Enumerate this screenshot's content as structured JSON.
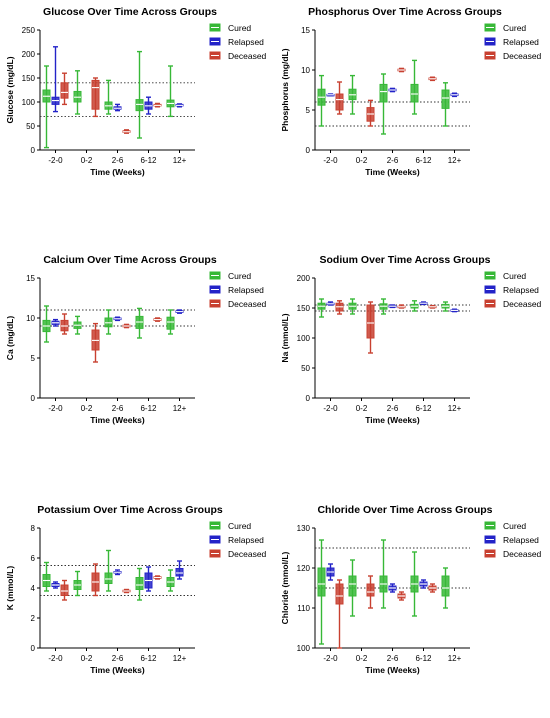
{
  "legend": [
    {
      "name": "Cured",
      "color": "#2ca02c"
    },
    {
      "name": "Relapsed",
      "color": "#1f1fd0"
    },
    {
      "name": "Deceased",
      "color": "#a0522d"
    }
  ],
  "box_colors": {
    "Cured": "#37b837",
    "Relapsed": "#2323c8",
    "Deceased": "#c84030"
  },
  "chart_data": [
    {
      "type": "box",
      "title": "Glucose Over Time Across Groups",
      "ylabel": "Glucose (mg/dL)",
      "xlabel": "Time (Weeks)",
      "ylim": [
        0,
        250
      ],
      "yticks": [
        0,
        50,
        100,
        150,
        200,
        250
      ],
      "categories": [
        "-2-0",
        "0-2",
        "2-6",
        "6-12",
        "12+"
      ],
      "ref_lines": [
        70,
        140
      ],
      "series": [
        {
          "name": "Cured",
          "boxes": [
            [
              5,
              100,
              112,
              125,
              175
            ],
            [
              75,
              100,
              110,
              122,
              165
            ],
            [
              75,
              85,
              92,
              100,
              145
            ],
            [
              25,
              82,
              95,
              105,
              205
            ],
            [
              70,
              90,
              97,
              104,
              175
            ]
          ]
        },
        {
          "name": "Relapsed",
          "boxes": [
            [
              80,
              95,
              103,
              110,
              215
            ],
            null,
            [
              82,
              85,
              87,
              90,
              95
            ],
            [
              75,
              85,
              92,
              100,
              110
            ],
            [
              90,
              92,
              93,
              95,
              96
            ]
          ]
        },
        {
          "name": "Deceased",
          "boxes": [
            [
              95,
              108,
              120,
              140,
              160
            ],
            [
              70,
              85,
              130,
              145,
              150
            ],
            [
              35,
              37,
              38,
              40,
              42
            ],
            [
              90,
              92,
              93,
              95,
              97
            ],
            null
          ]
        }
      ]
    },
    {
      "type": "box",
      "title": "Phosphorus Over Time Across Groups",
      "ylabel": "Phosphorus (mg/dL)",
      "xlabel": "Time (Weeks)",
      "ylim": [
        0,
        15
      ],
      "yticks": [
        0,
        5,
        10,
        15
      ],
      "categories": [
        "-2-0",
        "0-2",
        "2-6",
        "6-12",
        "12+"
      ],
      "ref_lines": [
        3,
        6
      ],
      "series": [
        {
          "name": "Cured",
          "boxes": [
            [
              3,
              5.6,
              6.6,
              7.6,
              9.3
            ],
            [
              4.5,
              6.3,
              6.9,
              7.6,
              9.3
            ],
            [
              2,
              6,
              7.3,
              8.2,
              9.5
            ],
            [
              4.5,
              6,
              7,
              8.2,
              11.2
            ],
            [
              3,
              5.2,
              6.5,
              7.5,
              8.4
            ]
          ]
        },
        {
          "name": "Relapsed",
          "boxes": [
            [
              6.8,
              6.85,
              6.9,
              6.95,
              7
            ],
            null,
            [
              7.3,
              7.4,
              7.5,
              7.6,
              7.7
            ],
            null,
            [
              6.7,
              6.8,
              6.9,
              7,
              7.1
            ]
          ]
        },
        {
          "name": "Deceased",
          "boxes": [
            [
              4.5,
              5,
              6.3,
              7,
              8.5
            ],
            [
              3,
              3.6,
              4.5,
              5.3,
              6.2
            ],
            [
              9.8,
              9.9,
              10,
              10.1,
              10.2
            ],
            [
              8.7,
              8.8,
              8.9,
              9,
              9.1
            ],
            null
          ]
        }
      ]
    },
    {
      "type": "box",
      "title": "Calcium Over Time Across Groups",
      "ylabel": "Ca (mg/dL)",
      "xlabel": "Time (Weeks)",
      "ylim": [
        0,
        15
      ],
      "yticks": [
        0,
        5,
        10,
        15
      ],
      "categories": [
        "-2-0",
        "0-2",
        "2-6",
        "6-12",
        "12+"
      ],
      "ref_lines": [
        9,
        11
      ],
      "series": [
        {
          "name": "Cured",
          "boxes": [
            [
              7,
              8.3,
              9,
              9.7,
              11.5
            ],
            [
              8,
              8.7,
              9.1,
              9.5,
              10.2
            ],
            [
              8,
              8.9,
              9.4,
              10,
              11
            ],
            [
              7.5,
              8.7,
              9.5,
              10.2,
              11.2
            ],
            [
              8,
              8.6,
              9.5,
              10.1,
              11
            ]
          ]
        },
        {
          "name": "Relapsed",
          "boxes": [
            [
              9,
              9.2,
              9.4,
              9.6,
              9.8
            ],
            null,
            [
              9.7,
              9.8,
              9.9,
              10,
              10.1
            ],
            null,
            [
              10.6,
              10.7,
              10.8,
              10.9,
              11
            ]
          ]
        },
        {
          "name": "Deceased",
          "boxes": [
            [
              8,
              8.4,
              9,
              9.7,
              10.5
            ],
            [
              4.5,
              6,
              7.2,
              8.5,
              9.3
            ],
            [
              8.8,
              8.9,
              9,
              9.1,
              9.2
            ],
            [
              9.6,
              9.7,
              9.8,
              9.9,
              10
            ],
            null
          ]
        }
      ]
    },
    {
      "type": "box",
      "title": "Sodium Over Time Across Groups",
      "ylabel": "Na (mmol/L)",
      "xlabel": "Time (Weeks)",
      "ylim": [
        0,
        200
      ],
      "yticks": [
        0,
        50,
        100,
        150,
        200
      ],
      "categories": [
        "-2-0",
        "0-2",
        "2-6",
        "6-12",
        "12+"
      ],
      "ref_lines": [
        145,
        155
      ],
      "series": [
        {
          "name": "Cured",
          "boxes": [
            [
              135,
              148,
              153,
              158,
              165
            ],
            [
              140,
              148,
              153,
              158,
              165
            ],
            [
              140,
              148,
              153,
              157,
              165
            ],
            [
              145,
              150,
              153,
              156,
              162
            ],
            [
              145,
              150,
              153,
              156,
              160
            ]
          ]
        },
        {
          "name": "Relapsed",
          "boxes": [
            [
              155,
              156,
              157,
              158,
              160
            ],
            null,
            [
              151,
              152,
              153,
              154,
              155
            ],
            [
              156,
              157,
              158,
              159,
              160
            ],
            [
              144,
              145,
              146,
              147,
              148
            ]
          ]
        },
        {
          "name": "Deceased",
          "boxes": [
            [
              140,
              145,
              152,
              158,
              162
            ],
            [
              75,
              100,
              125,
              155,
              160
            ],
            [
              150,
              151,
              152,
              153,
              155
            ],
            [
              150,
              151,
              152,
              153,
              154
            ],
            null
          ]
        }
      ]
    },
    {
      "type": "box",
      "title": "Potassium Over Time Across Groups",
      "ylabel": "K (mmol/L)",
      "xlabel": "Time (Weeks)",
      "ylim": [
        0,
        8
      ],
      "yticks": [
        0,
        2,
        4,
        6,
        8
      ],
      "categories": [
        "-2-0",
        "0-2",
        "2-6",
        "6-12",
        "12+"
      ],
      "ref_lines": [
        3.5,
        5.5
      ],
      "series": [
        {
          "name": "Cured",
          "boxes": [
            [
              3.8,
              4.1,
              4.5,
              4.9,
              5.7
            ],
            [
              3.5,
              3.9,
              4.2,
              4.5,
              5.1
            ],
            [
              3.8,
              4.3,
              4.6,
              5,
              6.5
            ],
            [
              3.2,
              3.9,
              4.2,
              4.7,
              5.3
            ],
            [
              3.8,
              4.1,
              4.4,
              4.7,
              5.2
            ]
          ]
        },
        {
          "name": "Relapsed",
          "boxes": [
            [
              4,
              4.1,
              4.2,
              4.3,
              4.4
            ],
            null,
            [
              4.9,
              5,
              5.05,
              5.1,
              5.2
            ],
            [
              3.8,
              4,
              4.5,
              5,
              5.4
            ],
            [
              4.6,
              4.8,
              5,
              5.3,
              5.8
            ]
          ]
        },
        {
          "name": "Deceased",
          "boxes": [
            [
              3.2,
              3.5,
              3.8,
              4.2,
              4.5
            ],
            [
              3.5,
              3.8,
              4.4,
              5,
              5.6
            ],
            [
              3.7,
              3.75,
              3.8,
              3.85,
              3.9
            ],
            [
              4.6,
              4.65,
              4.7,
              4.75,
              4.8
            ],
            null
          ]
        }
      ]
    },
    {
      "type": "box",
      "title": "Chloride Over Time Across Groups",
      "ylabel": "Chloride (mmol/L)",
      "xlabel": "Time (Weeks)",
      "ylim": [
        100,
        130
      ],
      "yticks": [
        100,
        110,
        120,
        130
      ],
      "categories": [
        "-2-0",
        "0-2",
        "2-6",
        "6-12",
        "12+"
      ],
      "ref_lines": [
        115,
        125
      ],
      "series": [
        {
          "name": "Cured",
          "boxes": [
            [
              101,
              113,
              116,
              120,
              127
            ],
            [
              108,
              113,
              116,
              118,
              122
            ],
            [
              110,
              114,
              116,
              118,
              127
            ],
            [
              108,
              114,
              116,
              118,
              124
            ],
            [
              110,
              113,
              115,
              118,
              120
            ]
          ]
        },
        {
          "name": "Relapsed",
          "boxes": [
            [
              117,
              118,
              119,
              120,
              121
            ],
            null,
            [
              114,
              114.5,
              115,
              115.5,
              116
            ],
            [
              115,
              115.5,
              116,
              116.5,
              117
            ],
            null
          ]
        },
        {
          "name": "Deceased",
          "boxes": [
            [
              100,
              111,
              113,
              116,
              117
            ],
            [
              110,
              113,
              114,
              116,
              118
            ],
            [
              112,
              112.5,
              113,
              113.5,
              114
            ],
            [
              114,
              114.5,
              115,
              115.5,
              116
            ],
            null
          ]
        }
      ]
    }
  ]
}
